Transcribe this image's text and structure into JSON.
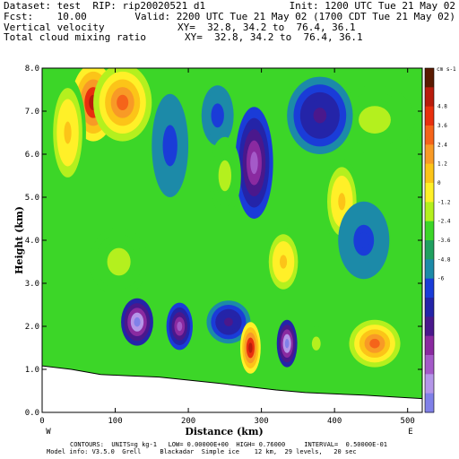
{
  "header": {
    "line1_left": "Dataset: test  RIP: rip20020521 d1",
    "line1_right": "Init: 1200 UTC Tue 21 May 02",
    "line2_left": "Fcst:    10.00",
    "line2_right": "Valid: 2200 UTC Tue 21 May 02 (1700 CDT Tue 21 May 02)",
    "line3_left": "Vertical velocity",
    "line3_right": "XY=  32.8, 34.2 to  76.4, 36.1",
    "line4_left": "Total cloud mixing ratio",
    "line4_right": "XY=  32.8, 34.2 to  76.4, 36.1"
  },
  "footer": {
    "line1": "CONTOURS:  UNITS=g kg-1   LOW= 0.00000E+00  HIGH= 0.76000     INTERVAL=  0.50000E-01",
    "line2": "Model info: V3.5.0  Grell     Blackadar  Simple ice    12 km,  29 levels,   20 sec"
  },
  "chart_data": {
    "type": "heatmap",
    "xlabel": "Distance (km)",
    "ylabel": "Height (km)",
    "xlim": [
      0,
      520
    ],
    "ylim": [
      0,
      8
    ],
    "x_ticks": [
      0,
      100,
      200,
      300,
      400,
      500
    ],
    "x_tick_labels": [
      "0",
      "100",
      "200",
      "300",
      "400",
      "500"
    ],
    "y_ticks": [
      0,
      1,
      2,
      3,
      4,
      5,
      6,
      7,
      8
    ],
    "y_tick_labels": [
      "0.0",
      "1.0",
      "2.0",
      "3.0",
      "4.0",
      "5.0",
      "6.0",
      "7.0",
      "8.0"
    ],
    "endpoint_labels": {
      "left": "W",
      "right": "E"
    },
    "colorbar": {
      "units": "cm s-1",
      "levels": [
        4.8,
        3.6,
        2.4,
        1.2,
        0,
        -1.2,
        -2.4,
        -3.6,
        -4.8,
        -6
      ],
      "tick_labels": [
        "4.8",
        "3.6",
        "2.4",
        "1.2",
        "0",
        "-1.2",
        "-2.4",
        "-3.6",
        "-4.8",
        "-6"
      ],
      "colors": [
        "#5a1a00",
        "#b81c0c",
        "#e8300e",
        "#f5641a",
        "#f89a26",
        "#fcc418",
        "#fff028",
        "#b4f01e",
        "#3cd628",
        "#20a060",
        "#1c8aa8",
        "#1a3cd8",
        "#2424a8",
        "#4a188c",
        "#8a2aa0",
        "#a45ac8",
        "#b496e8",
        "#8080e8"
      ]
    },
    "terrain_km": [
      [
        0,
        1.08
      ],
      [
        40,
        1.0
      ],
      [
        80,
        0.88
      ],
      [
        120,
        0.85
      ],
      [
        160,
        0.82
      ],
      [
        200,
        0.75
      ],
      [
        240,
        0.68
      ],
      [
        280,
        0.6
      ],
      [
        320,
        0.52
      ],
      [
        360,
        0.46
      ],
      [
        400,
        0.43
      ],
      [
        440,
        0.4
      ],
      [
        480,
        0.36
      ],
      [
        520,
        0.32
      ]
    ],
    "features": [
      {
        "x": 70,
        "y": 7.2,
        "value": 4.8,
        "rx": 30,
        "ry": 0.9
      },
      {
        "x": 110,
        "y": 7.2,
        "value": 3.6,
        "rx": 40,
        "ry": 0.9
      },
      {
        "x": 35,
        "y": 6.5,
        "value": 2.4,
        "rx": 25,
        "ry": 1.3
      },
      {
        "x": 130,
        "y": 2.1,
        "value": -4.8,
        "rx": 22,
        "ry": 0.55
      },
      {
        "x": 188,
        "y": 2.0,
        "value": -3.6,
        "rx": 18,
        "ry": 0.55
      },
      {
        "x": 255,
        "y": 2.1,
        "value": -2.4,
        "rx": 30,
        "ry": 0.5
      },
      {
        "x": 285,
        "y": 1.5,
        "value": 4.8,
        "rx": 14,
        "ry": 0.6
      },
      {
        "x": 335,
        "y": 1.6,
        "value": -4.8,
        "rx": 14,
        "ry": 0.55
      },
      {
        "x": 375,
        "y": 1.6,
        "value": 1.2,
        "rx": 15,
        "ry": 0.4
      },
      {
        "x": 455,
        "y": 1.6,
        "value": 3.6,
        "rx": 35,
        "ry": 0.55
      },
      {
        "x": 240,
        "y": 6.9,
        "value": -1.2,
        "rx": 22,
        "ry": 0.7
      },
      {
        "x": 290,
        "y": 5.8,
        "value": -3.6,
        "rx": 26,
        "ry": 1.3
      },
      {
        "x": 250,
        "y": 5.5,
        "value": 1.2,
        "rx": 22,
        "ry": 0.9
      },
      {
        "x": 410,
        "y": 4.9,
        "value": 2.4,
        "rx": 25,
        "ry": 1.0
      },
      {
        "x": 455,
        "y": 6.8,
        "value": 1.2,
        "rx": 55,
        "ry": 0.8
      },
      {
        "x": 380,
        "y": 6.9,
        "value": -2.4,
        "rx": 45,
        "ry": 0.9
      },
      {
        "x": 175,
        "y": 6.2,
        "value": -1.2,
        "rx": 25,
        "ry": 1.2
      },
      {
        "x": 105,
        "y": 3.5,
        "value": 1.2,
        "rx": 40,
        "ry": 0.8
      },
      {
        "x": 440,
        "y": 4.0,
        "value": -1.2,
        "rx": 35,
        "ry": 0.9
      },
      {
        "x": 330,
        "y": 3.5,
        "value": 2.4,
        "rx": 25,
        "ry": 0.8
      }
    ]
  }
}
